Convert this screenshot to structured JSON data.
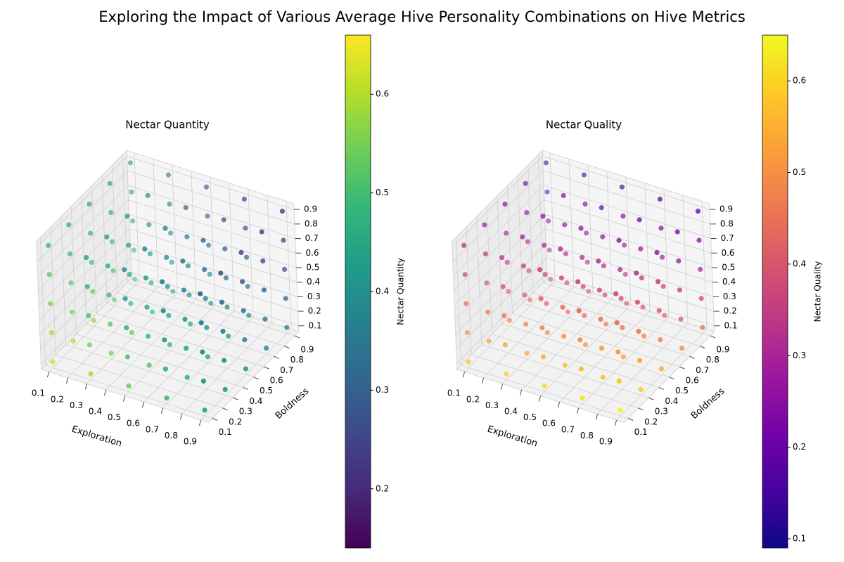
{
  "title": "Exploring the Impact of Various Average Hive Personality Combinations on Hive Metrics",
  "chart_data": [
    {
      "type": "scatter3d",
      "title": "Nectar Quantity",
      "x_label": "Exploration",
      "y_label": "Boldness",
      "colorbar_label": "Nectar Quantity",
      "colormap": "viridis",
      "xlim": [
        0.06,
        0.94
      ],
      "ylim": [
        0.06,
        0.94
      ],
      "zlim": [
        0.06,
        0.94
      ],
      "clim": [
        0.14,
        0.66
      ],
      "xticks": [
        0.1,
        0.2,
        0.3,
        0.4,
        0.5,
        0.6,
        0.7,
        0.8,
        0.9
      ],
      "yticks": [
        0.1,
        0.2,
        0.3,
        0.4,
        0.5,
        0.6,
        0.7,
        0.8,
        0.9
      ],
      "zticks": [
        0.1,
        0.2,
        0.3,
        0.4,
        0.5,
        0.6,
        0.7,
        0.8,
        0.9
      ],
      "cticks": [
        0.2,
        0.3,
        0.4,
        0.5,
        0.6
      ],
      "x": [
        0.1,
        0.1,
        0.1,
        0.1,
        0.1,
        0.1,
        0.1,
        0.1,
        0.1,
        0.1,
        0.1,
        0.1,
        0.1,
        0.1,
        0.1,
        0.1,
        0.1,
        0.1,
        0.1,
        0.1,
        0.1,
        0.1,
        0.1,
        0.1,
        0.1,
        0.3,
        0.3,
        0.3,
        0.3,
        0.3,
        0.3,
        0.3,
        0.3,
        0.3,
        0.3,
        0.3,
        0.3,
        0.3,
        0.3,
        0.3,
        0.3,
        0.3,
        0.3,
        0.3,
        0.3,
        0.3,
        0.3,
        0.3,
        0.3,
        0.3,
        0.5,
        0.5,
        0.5,
        0.5,
        0.5,
        0.5,
        0.5,
        0.5,
        0.5,
        0.5,
        0.5,
        0.5,
        0.5,
        0.5,
        0.5,
        0.5,
        0.5,
        0.5,
        0.5,
        0.5,
        0.5,
        0.5,
        0.5,
        0.5,
        0.5,
        0.7,
        0.7,
        0.7,
        0.7,
        0.7,
        0.7,
        0.7,
        0.7,
        0.7,
        0.7,
        0.7,
        0.7,
        0.7,
        0.7,
        0.7,
        0.7,
        0.7,
        0.7,
        0.7,
        0.7,
        0.7,
        0.7,
        0.7,
        0.7,
        0.7,
        0.9,
        0.9,
        0.9,
        0.9,
        0.9,
        0.9,
        0.9,
        0.9,
        0.9,
        0.9,
        0.9,
        0.9,
        0.9,
        0.9,
        0.9,
        0.9,
        0.9,
        0.9,
        0.9,
        0.9,
        0.9,
        0.9,
        0.9,
        0.9,
        0.9
      ],
      "y": [
        0.1,
        0.1,
        0.1,
        0.1,
        0.1,
        0.3,
        0.3,
        0.3,
        0.3,
        0.3,
        0.5,
        0.5,
        0.5,
        0.5,
        0.5,
        0.7,
        0.7,
        0.7,
        0.7,
        0.7,
        0.9,
        0.9,
        0.9,
        0.9,
        0.9,
        0.1,
        0.1,
        0.1,
        0.1,
        0.1,
        0.3,
        0.3,
        0.3,
        0.3,
        0.3,
        0.5,
        0.5,
        0.5,
        0.5,
        0.5,
        0.7,
        0.7,
        0.7,
        0.7,
        0.7,
        0.9,
        0.9,
        0.9,
        0.9,
        0.9,
        0.1,
        0.1,
        0.1,
        0.1,
        0.1,
        0.3,
        0.3,
        0.3,
        0.3,
        0.3,
        0.5,
        0.5,
        0.5,
        0.5,
        0.5,
        0.7,
        0.7,
        0.7,
        0.7,
        0.7,
        0.9,
        0.9,
        0.9,
        0.9,
        0.9,
        0.1,
        0.1,
        0.1,
        0.1,
        0.1,
        0.3,
        0.3,
        0.3,
        0.3,
        0.3,
        0.5,
        0.5,
        0.5,
        0.5,
        0.5,
        0.7,
        0.7,
        0.7,
        0.7,
        0.7,
        0.9,
        0.9,
        0.9,
        0.9,
        0.9,
        0.1,
        0.1,
        0.1,
        0.1,
        0.1,
        0.3,
        0.3,
        0.3,
        0.3,
        0.3,
        0.5,
        0.5,
        0.5,
        0.5,
        0.5,
        0.7,
        0.7,
        0.7,
        0.7,
        0.7,
        0.9,
        0.9,
        0.9,
        0.9,
        0.9
      ],
      "z": [
        0.1,
        0.3,
        0.5,
        0.7,
        0.9,
        0.1,
        0.3,
        0.5,
        0.7,
        0.9,
        0.1,
        0.3,
        0.5,
        0.7,
        0.9,
        0.1,
        0.3,
        0.5,
        0.7,
        0.9,
        0.1,
        0.3,
        0.5,
        0.7,
        0.9,
        0.1,
        0.3,
        0.5,
        0.7,
        0.9,
        0.1,
        0.3,
        0.5,
        0.7,
        0.9,
        0.1,
        0.3,
        0.5,
        0.7,
        0.9,
        0.1,
        0.3,
        0.5,
        0.7,
        0.9,
        0.1,
        0.3,
        0.5,
        0.7,
        0.9,
        0.1,
        0.3,
        0.5,
        0.7,
        0.9,
        0.1,
        0.3,
        0.5,
        0.7,
        0.9,
        0.1,
        0.3,
        0.5,
        0.7,
        0.9,
        0.1,
        0.3,
        0.5,
        0.7,
        0.9,
        0.1,
        0.3,
        0.5,
        0.7,
        0.9,
        0.1,
        0.3,
        0.5,
        0.7,
        0.9,
        0.1,
        0.3,
        0.5,
        0.7,
        0.9,
        0.1,
        0.3,
        0.5,
        0.7,
        0.9,
        0.1,
        0.3,
        0.5,
        0.7,
        0.9,
        0.1,
        0.3,
        0.5,
        0.7,
        0.9,
        0.1,
        0.3,
        0.5,
        0.7,
        0.9,
        0.1,
        0.3,
        0.5,
        0.7,
        0.9,
        0.1,
        0.3,
        0.5,
        0.7,
        0.9,
        0.1,
        0.3,
        0.5,
        0.7,
        0.9,
        0.1,
        0.3,
        0.5,
        0.7,
        0.9
      ],
      "values": [
        0.62,
        0.585,
        0.55,
        0.515,
        0.48,
        0.59,
        0.555,
        0.52,
        0.485,
        0.45,
        0.56,
        0.525,
        0.49,
        0.455,
        0.42,
        0.53,
        0.495,
        0.46,
        0.425,
        0.39,
        0.5,
        0.465,
        0.43,
        0.395,
        0.36,
        0.58,
        0.545,
        0.51,
        0.475,
        0.44,
        0.55,
        0.515,
        0.48,
        0.445,
        0.41,
        0.52,
        0.485,
        0.45,
        0.415,
        0.38,
        0.49,
        0.455,
        0.42,
        0.385,
        0.35,
        0.46,
        0.425,
        0.39,
        0.355,
        0.32,
        0.54,
        0.505,
        0.47,
        0.435,
        0.4,
        0.51,
        0.475,
        0.44,
        0.405,
        0.37,
        0.48,
        0.445,
        0.41,
        0.375,
        0.34,
        0.45,
        0.415,
        0.38,
        0.345,
        0.31,
        0.42,
        0.385,
        0.35,
        0.315,
        0.28,
        0.5,
        0.465,
        0.43,
        0.395,
        0.36,
        0.47,
        0.435,
        0.4,
        0.365,
        0.33,
        0.44,
        0.405,
        0.37,
        0.335,
        0.3,
        0.41,
        0.375,
        0.34,
        0.305,
        0.27,
        0.38,
        0.345,
        0.31,
        0.275,
        0.24,
        0.46,
        0.425,
        0.39,
        0.355,
        0.32,
        0.43,
        0.395,
        0.36,
        0.325,
        0.29,
        0.4,
        0.365,
        0.33,
        0.295,
        0.26,
        0.37,
        0.335,
        0.3,
        0.265,
        0.23,
        0.34,
        0.305,
        0.27,
        0.235,
        0.2
      ]
    },
    {
      "type": "scatter3d",
      "title": "Nectar Quality",
      "x_label": "Exploration",
      "y_label": "Boldness",
      "colorbar_label": "Nectar Quality",
      "colormap": "plasma",
      "xlim": [
        0.06,
        0.94
      ],
      "ylim": [
        0.06,
        0.94
      ],
      "zlim": [
        0.06,
        0.94
      ],
      "clim": [
        0.09,
        0.65
      ],
      "xticks": [
        0.1,
        0.2,
        0.3,
        0.4,
        0.5,
        0.6,
        0.7,
        0.8,
        0.9
      ],
      "yticks": [
        0.1,
        0.2,
        0.3,
        0.4,
        0.5,
        0.6,
        0.7,
        0.8,
        0.9
      ],
      "zticks": [
        0.1,
        0.2,
        0.3,
        0.4,
        0.5,
        0.6,
        0.7,
        0.8,
        0.9
      ],
      "cticks": [
        0.1,
        0.2,
        0.3,
        0.4,
        0.5,
        0.6
      ],
      "x": [
        0.1,
        0.1,
        0.1,
        0.1,
        0.1,
        0.1,
        0.1,
        0.1,
        0.1,
        0.1,
        0.1,
        0.1,
        0.1,
        0.1,
        0.1,
        0.1,
        0.1,
        0.1,
        0.1,
        0.1,
        0.1,
        0.1,
        0.1,
        0.1,
        0.1,
        0.3,
        0.3,
        0.3,
        0.3,
        0.3,
        0.3,
        0.3,
        0.3,
        0.3,
        0.3,
        0.3,
        0.3,
        0.3,
        0.3,
        0.3,
        0.3,
        0.3,
        0.3,
        0.3,
        0.3,
        0.3,
        0.3,
        0.3,
        0.3,
        0.3,
        0.5,
        0.5,
        0.5,
        0.5,
        0.5,
        0.5,
        0.5,
        0.5,
        0.5,
        0.5,
        0.5,
        0.5,
        0.5,
        0.5,
        0.5,
        0.5,
        0.5,
        0.5,
        0.5,
        0.5,
        0.5,
        0.5,
        0.5,
        0.5,
        0.5,
        0.7,
        0.7,
        0.7,
        0.7,
        0.7,
        0.7,
        0.7,
        0.7,
        0.7,
        0.7,
        0.7,
        0.7,
        0.7,
        0.7,
        0.7,
        0.7,
        0.7,
        0.7,
        0.7,
        0.7,
        0.7,
        0.7,
        0.7,
        0.7,
        0.7,
        0.9,
        0.9,
        0.9,
        0.9,
        0.9,
        0.9,
        0.9,
        0.9,
        0.9,
        0.9,
        0.9,
        0.9,
        0.9,
        0.9,
        0.9,
        0.9,
        0.9,
        0.9,
        0.9,
        0.9,
        0.9,
        0.9,
        0.9,
        0.9,
        0.9
      ],
      "y": [
        0.1,
        0.1,
        0.1,
        0.1,
        0.1,
        0.3,
        0.3,
        0.3,
        0.3,
        0.3,
        0.5,
        0.5,
        0.5,
        0.5,
        0.5,
        0.7,
        0.7,
        0.7,
        0.7,
        0.7,
        0.9,
        0.9,
        0.9,
        0.9,
        0.9,
        0.1,
        0.1,
        0.1,
        0.1,
        0.1,
        0.3,
        0.3,
        0.3,
        0.3,
        0.3,
        0.5,
        0.5,
        0.5,
        0.5,
        0.5,
        0.7,
        0.7,
        0.7,
        0.7,
        0.7,
        0.9,
        0.9,
        0.9,
        0.9,
        0.9,
        0.1,
        0.1,
        0.1,
        0.1,
        0.1,
        0.3,
        0.3,
        0.3,
        0.3,
        0.3,
        0.5,
        0.5,
        0.5,
        0.5,
        0.5,
        0.7,
        0.7,
        0.7,
        0.7,
        0.7,
        0.9,
        0.9,
        0.9,
        0.9,
        0.9,
        0.1,
        0.1,
        0.1,
        0.1,
        0.1,
        0.3,
        0.3,
        0.3,
        0.3,
        0.3,
        0.5,
        0.5,
        0.5,
        0.5,
        0.5,
        0.7,
        0.7,
        0.7,
        0.7,
        0.7,
        0.9,
        0.9,
        0.9,
        0.9,
        0.9,
        0.1,
        0.1,
        0.1,
        0.1,
        0.1,
        0.3,
        0.3,
        0.3,
        0.3,
        0.3,
        0.5,
        0.5,
        0.5,
        0.5,
        0.5,
        0.7,
        0.7,
        0.7,
        0.7,
        0.7,
        0.9,
        0.9,
        0.9,
        0.9,
        0.9
      ],
      "z": [
        0.1,
        0.3,
        0.5,
        0.7,
        0.9,
        0.1,
        0.3,
        0.5,
        0.7,
        0.9,
        0.1,
        0.3,
        0.5,
        0.7,
        0.9,
        0.1,
        0.3,
        0.5,
        0.7,
        0.9,
        0.1,
        0.3,
        0.5,
        0.7,
        0.9,
        0.1,
        0.3,
        0.5,
        0.7,
        0.9,
        0.1,
        0.3,
        0.5,
        0.7,
        0.9,
        0.1,
        0.3,
        0.5,
        0.7,
        0.9,
        0.1,
        0.3,
        0.5,
        0.7,
        0.9,
        0.1,
        0.3,
        0.5,
        0.7,
        0.9,
        0.1,
        0.3,
        0.5,
        0.7,
        0.9,
        0.1,
        0.3,
        0.5,
        0.7,
        0.9,
        0.1,
        0.3,
        0.5,
        0.7,
        0.9,
        0.1,
        0.3,
        0.5,
        0.7,
        0.9,
        0.1,
        0.3,
        0.5,
        0.7,
        0.9,
        0.1,
        0.3,
        0.5,
        0.7,
        0.9,
        0.1,
        0.3,
        0.5,
        0.7,
        0.9,
        0.1,
        0.3,
        0.5,
        0.7,
        0.9,
        0.1,
        0.3,
        0.5,
        0.7,
        0.9,
        0.1,
        0.3,
        0.5,
        0.7,
        0.9,
        0.1,
        0.3,
        0.5,
        0.7,
        0.9,
        0.1,
        0.3,
        0.5,
        0.7,
        0.9,
        0.1,
        0.3,
        0.5,
        0.7,
        0.9,
        0.1,
        0.3,
        0.5,
        0.7,
        0.9,
        0.1,
        0.3,
        0.5,
        0.7,
        0.9
      ],
      "values": [
        0.58,
        0.515,
        0.45,
        0.385,
        0.32,
        0.53,
        0.465,
        0.4,
        0.335,
        0.27,
        0.48,
        0.415,
        0.35,
        0.285,
        0.22,
        0.43,
        0.365,
        0.3,
        0.235,
        0.17,
        0.38,
        0.315,
        0.25,
        0.185,
        0.12,
        0.595,
        0.53,
        0.465,
        0.4,
        0.335,
        0.545,
        0.48,
        0.415,
        0.35,
        0.285,
        0.495,
        0.43,
        0.365,
        0.3,
        0.235,
        0.445,
        0.38,
        0.315,
        0.25,
        0.185,
        0.395,
        0.33,
        0.265,
        0.2,
        0.135,
        0.61,
        0.545,
        0.48,
        0.415,
        0.35,
        0.56,
        0.495,
        0.43,
        0.365,
        0.3,
        0.51,
        0.445,
        0.38,
        0.315,
        0.25,
        0.46,
        0.395,
        0.33,
        0.265,
        0.2,
        0.41,
        0.345,
        0.28,
        0.215,
        0.15,
        0.625,
        0.56,
        0.495,
        0.43,
        0.365,
        0.575,
        0.51,
        0.445,
        0.38,
        0.315,
        0.525,
        0.46,
        0.395,
        0.33,
        0.265,
        0.475,
        0.41,
        0.345,
        0.28,
        0.215,
        0.425,
        0.36,
        0.295,
        0.23,
        0.165,
        0.64,
        0.575,
        0.51,
        0.445,
        0.38,
        0.59,
        0.525,
        0.46,
        0.395,
        0.33,
        0.54,
        0.475,
        0.41,
        0.345,
        0.28,
        0.49,
        0.425,
        0.36,
        0.295,
        0.23,
        0.44,
        0.375,
        0.31,
        0.245,
        0.18
      ]
    }
  ]
}
